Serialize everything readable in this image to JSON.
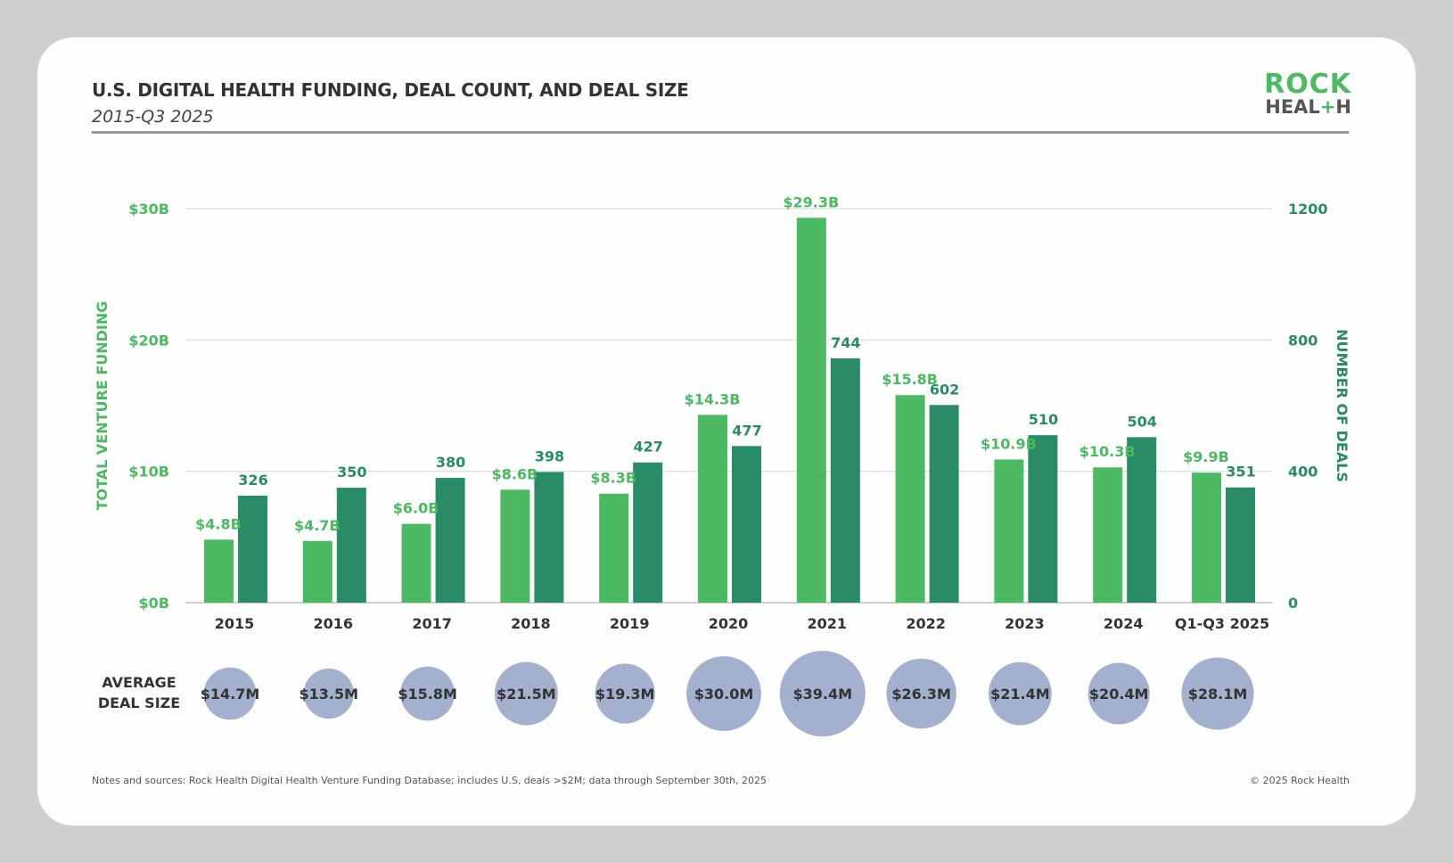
{
  "header": {
    "title": "U.S. DIGITAL HEALTH FUNDING, DEAL COUNT, AND DEAL SIZE",
    "subtitle": "2015-Q3 2025",
    "logo_text": [
      "ROCK",
      "HEAL+H"
    ]
  },
  "footer": {
    "note": "Notes and sources: Rock Health Digital Health Venture Funding Database; includes U.S. deals >$2M; data through September 30th, 2025",
    "copyright": "© 2025 Rock Health"
  },
  "colors": {
    "funding": "#4cb963",
    "deals": "#2a8c67",
    "bubble": "#a3b1cf",
    "text": "#333333"
  },
  "chart_data": {
    "type": "bar",
    "categories": [
      "2015",
      "2016",
      "2017",
      "2018",
      "2019",
      "2020",
      "2021",
      "2022",
      "2023",
      "2024",
      "Q1-Q3 2025"
    ],
    "series": [
      {
        "axis": "left",
        "values": [
          4.8,
          4.7,
          6.0,
          8.6,
          8.3,
          14.3,
          29.3,
          15.8,
          10.9,
          10.3,
          9.9
        ],
        "labels": [
          "$4.8B",
          "$4.7B",
          "$6.0B",
          "$8.6B",
          "$8.3B",
          "$14.3B",
          "$29.3B",
          "$15.8B",
          "$10.9B",
          "$10.3B",
          "$9.9B"
        ]
      },
      {
        "axis": "right",
        "values": [
          326,
          350,
          380,
          398,
          427,
          477,
          744,
          602,
          510,
          504,
          351
        ],
        "labels": [
          "326",
          "350",
          "380",
          "398",
          "427",
          "477",
          "744",
          "602",
          "510",
          "504",
          "351"
        ]
      }
    ],
    "average_deal_size": {
      "label": [
        "AVERAGE",
        "DEAL SIZE"
      ],
      "values": [
        14.7,
        13.5,
        15.8,
        21.5,
        19.3,
        30.0,
        39.4,
        26.3,
        21.4,
        20.4,
        28.1
      ],
      "labels": [
        "$14.7M",
        "$13.5M",
        "$15.8M",
        "$21.5M",
        "$19.3M",
        "$30.0M",
        "$39.4M",
        "$26.3M",
        "$21.4M",
        "$20.4M",
        "$28.1M"
      ]
    },
    "ylabel": "TOTAL VENTURE FUNDING",
    "y2label": "NUMBER OF DEALS",
    "ylim": [
      0,
      30
    ],
    "y2lim": [
      0,
      1200
    ],
    "yticks": [
      "$0B",
      "$10B",
      "$20B",
      "$30B"
    ],
    "y2ticks": [
      "0",
      "400",
      "800",
      "1200"
    ],
    "grid": true
  }
}
